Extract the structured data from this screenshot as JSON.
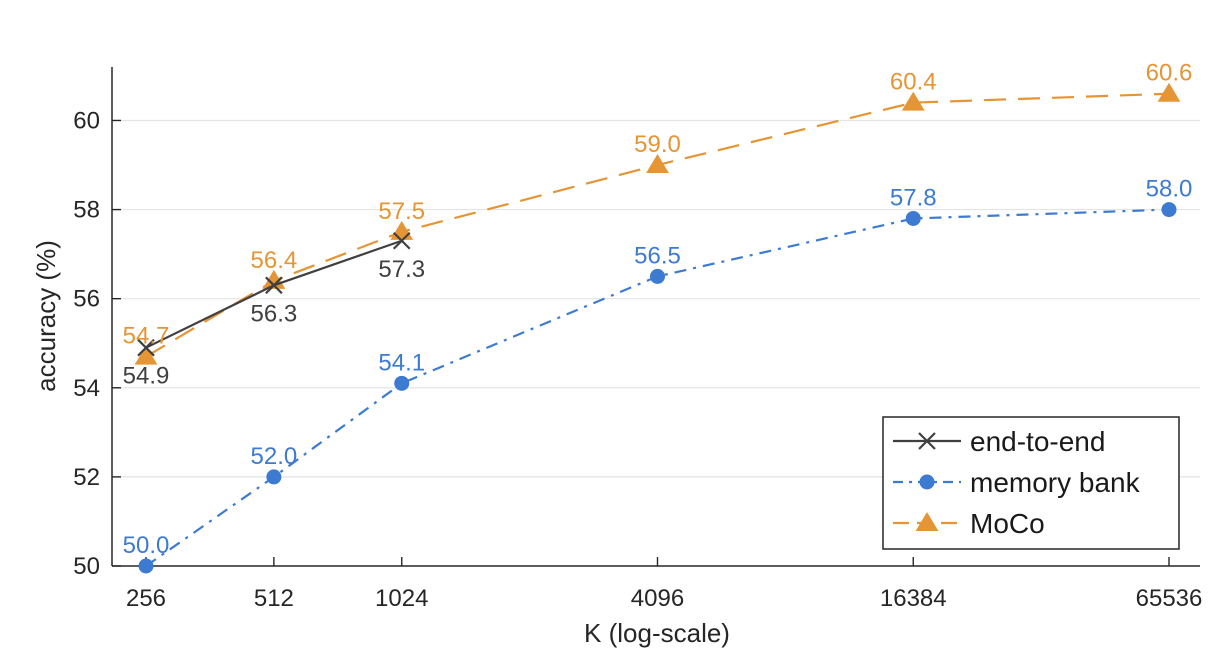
{
  "chart_data": {
    "type": "line",
    "title": "",
    "xlabel": "K (log-scale)",
    "ylabel": "accuracy (%)",
    "x_scale": "log2",
    "x": [
      256,
      512,
      1024,
      4096,
      16384,
      65536
    ],
    "x_tick_labels": [
      "256",
      "512",
      "1024",
      "4096",
      "16384",
      "65536"
    ],
    "y_ticks": [
      50,
      52,
      54,
      56,
      58,
      60
    ],
    "ylim": [
      50,
      61.2
    ],
    "grid": "horizontal",
    "legend_position": "bottom-right",
    "series": [
      {
        "name": "end-to-end",
        "color": "#404040",
        "line_style": "solid",
        "marker": "x",
        "x": [
          256,
          512,
          1024
        ],
        "values": [
          54.9,
          56.3,
          57.3
        ],
        "labels": [
          "54.9",
          "56.3",
          "57.3"
        ],
        "label_position": "below"
      },
      {
        "name": "memory bank",
        "color": "#3d7bd2",
        "line_style": "dashdot",
        "marker": "circle",
        "x": [
          256,
          512,
          1024,
          4096,
          16384,
          65536
        ],
        "values": [
          50.0,
          52.0,
          54.1,
          56.5,
          57.8,
          58.0
        ],
        "labels": [
          "50.0",
          "52.0",
          "54.1",
          "56.5",
          "57.8",
          "58.0"
        ],
        "label_position": "above"
      },
      {
        "name": "MoCo",
        "color": "#e69534",
        "line_style": "dashed",
        "marker": "triangle",
        "x": [
          256,
          512,
          1024,
          4096,
          16384,
          65536
        ],
        "values": [
          54.7,
          56.4,
          57.5,
          59.0,
          60.4,
          60.6
        ],
        "labels": [
          "54.7",
          "56.4",
          "57.5",
          "59.0",
          "60.4",
          "60.6"
        ],
        "label_position": "above"
      }
    ]
  }
}
